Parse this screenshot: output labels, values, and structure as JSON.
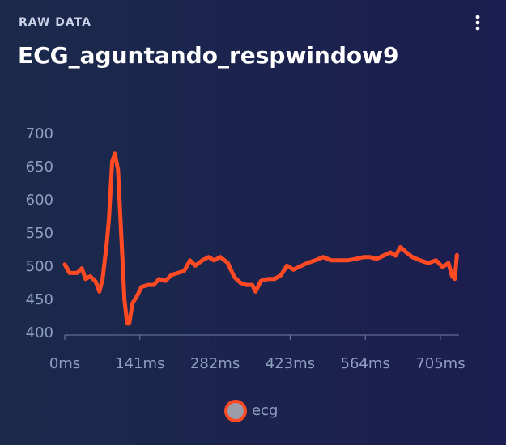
{
  "header": {
    "kicker": "RAW DATA",
    "title": "ECG_aguntando_respwindow9"
  },
  "chart_data": {
    "type": "line",
    "x": [
      0,
      9,
      23,
      32,
      39,
      48,
      58,
      65,
      71,
      79,
      83,
      89,
      94,
      100,
      106,
      112,
      117,
      121,
      127,
      136,
      144,
      156,
      167,
      177,
      189,
      200,
      212,
      224,
      235,
      245,
      258,
      270,
      280,
      292,
      306,
      318,
      330,
      341,
      352,
      358,
      368,
      382,
      394,
      406,
      417,
      429,
      439,
      455,
      470,
      485,
      500,
      515,
      530,
      545,
      561,
      573,
      585,
      598,
      611,
      621,
      630,
      641,
      652,
      667,
      682,
      697,
      709,
      720,
      727,
      732,
      736
    ],
    "series": [
      {
        "name": "ecg",
        "color": "#ff4a24",
        "values": [
          504,
          491,
          491,
          498,
          482,
          486,
          478,
          463,
          482,
          537,
          573,
          659,
          671,
          646,
          549,
          451,
          415,
          415,
          445,
          457,
          470,
          473,
          473,
          482,
          479,
          488,
          491,
          494,
          510,
          502,
          510,
          515,
          510,
          515,
          506,
          485,
          476,
          473,
          473,
          463,
          479,
          482,
          482,
          488,
          502,
          496,
          500,
          506,
          510,
          515,
          510,
          510,
          510,
          512,
          515,
          515,
          512,
          517,
          522,
          517,
          530,
          522,
          515,
          510,
          506,
          510,
          500,
          506,
          486,
          482,
          518
        ]
      }
    ],
    "xlim": [
      0,
      740
    ],
    "xticks": [
      {
        "value": 0,
        "label": "0ms"
      },
      {
        "value": 141,
        "label": "141ms"
      },
      {
        "value": 282,
        "label": "282ms"
      },
      {
        "value": 423,
        "label": "423ms"
      },
      {
        "value": 564,
        "label": "564ms"
      },
      {
        "value": 705,
        "label": "705ms"
      }
    ],
    "ylim": [
      400,
      700
    ],
    "yticks": [
      400,
      450,
      500,
      550,
      600,
      650,
      700
    ],
    "grid": false
  }
}
